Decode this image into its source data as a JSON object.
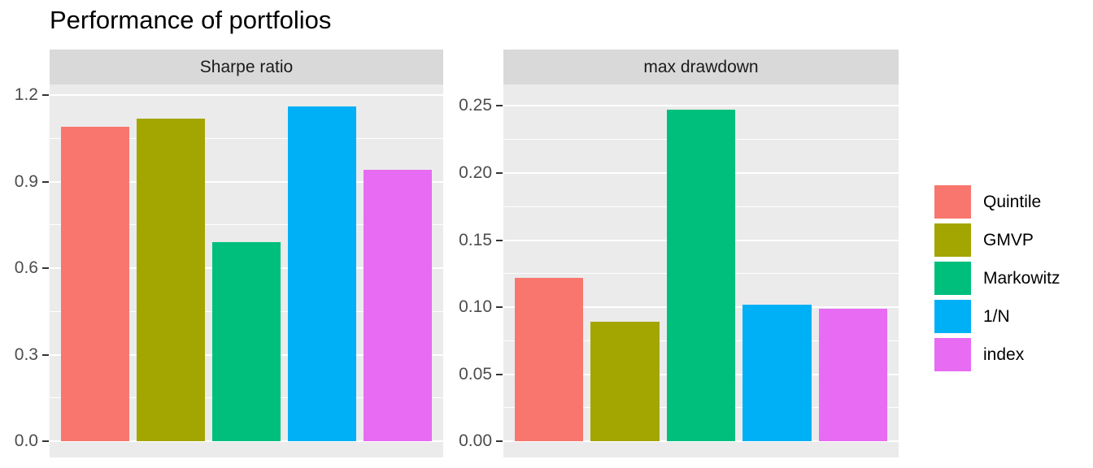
{
  "title": "Performance of portfolios",
  "chart_data": {
    "type": "bar",
    "title": "Performance of portfolios",
    "categories": [
      "Quintile",
      "GMVP",
      "Markowitz",
      "1/N",
      "index"
    ],
    "palette": [
      "#F8766D",
      "#A3A500",
      "#00BF7D",
      "#00B0F6",
      "#E76BF3"
    ],
    "legend": {
      "position": "right",
      "entries": [
        "Quintile",
        "GMVP",
        "Markowitz",
        "1/N",
        "index"
      ]
    },
    "grid": true,
    "xlabel": "",
    "ylabel": "",
    "facets": [
      {
        "label": "Sharpe ratio",
        "values": [
          1.09,
          1.12,
          0.69,
          1.16,
          0.94
        ],
        "ticks": [
          0.0,
          0.3,
          0.6,
          0.9,
          1.2
        ],
        "tick_labels": [
          "0.0",
          "0.3",
          "0.6",
          "0.9",
          "1.2"
        ],
        "ylim": [
          -0.056,
          1.237
        ]
      },
      {
        "label": "max drawdown",
        "values": [
          0.122,
          0.089,
          0.247,
          0.102,
          0.099
        ],
        "ticks": [
          0.0,
          0.05,
          0.1,
          0.15,
          0.2,
          0.25
        ],
        "tick_labels": [
          "0.00",
          "0.05",
          "0.10",
          "0.15",
          "0.20",
          "0.25"
        ],
        "ylim": [
          -0.012,
          0.266
        ]
      }
    ],
    "bar_width_fraction": 0.9,
    "slot_units": 5.2
  },
  "styles": {
    "panel_background": "#ebebeb",
    "strip_background": "#d9d9d9",
    "gridline_color": "#ffffff",
    "axis_text_color": "#4d4d4d",
    "tick_mark_color": "#333333",
    "title_color": "#000000"
  }
}
